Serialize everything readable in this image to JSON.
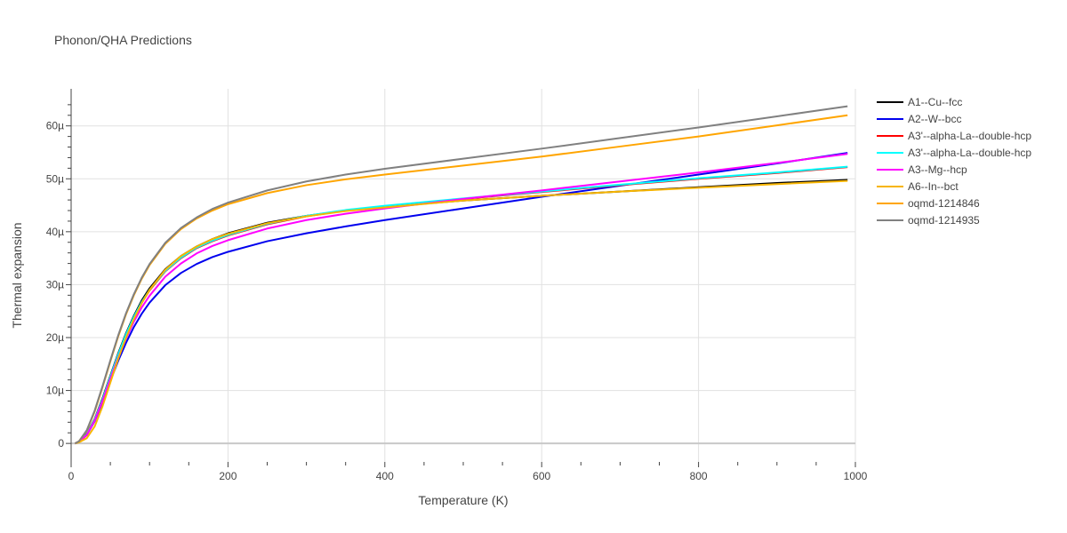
{
  "chart_data": {
    "type": "line",
    "title": "Phonon/QHA Predictions",
    "xlabel": "Temperature (K)",
    "ylabel": "Thermal expansion",
    "xlim": [
      0,
      1000
    ],
    "ylim": [
      -3.5e-06,
      6.7e-05
    ],
    "x_ticks": [
      0,
      200,
      400,
      600,
      800,
      1000
    ],
    "x_tick_labels": [
      "0",
      "200",
      "400",
      "600",
      "800",
      "1000"
    ],
    "y_ticks": [
      0,
      1e-05,
      2e-05,
      3e-05,
      4e-05,
      5e-05,
      6e-05
    ],
    "y_tick_labels": [
      "0",
      "10µ",
      "20µ",
      "30µ",
      "40µ",
      "50µ",
      "60µ"
    ],
    "grid": true,
    "legend_position": "right",
    "x": [
      5,
      10,
      20,
      30,
      40,
      50,
      60,
      70,
      80,
      90,
      100,
      120,
      140,
      160,
      180,
      200,
      250,
      300,
      350,
      400,
      500,
      600,
      700,
      800,
      900,
      990
    ],
    "series": [
      {
        "name": "A1--Cu--fcc",
        "color": "#000000",
        "values": [
          0,
          3e-07,
          1.8e-06,
          4.6e-06,
          8.5e-06,
          1.28e-05,
          1.7e-05,
          2.08e-05,
          2.41e-05,
          2.7e-05,
          2.93e-05,
          3.29e-05,
          3.54e-05,
          3.72e-05,
          3.86e-05,
          3.97e-05,
          4.17e-05,
          4.3e-05,
          4.4e-05,
          4.47e-05,
          4.59e-05,
          4.68e-05,
          4.76e-05,
          4.84e-05,
          4.92e-05,
          4.98e-05
        ]
      },
      {
        "name": "A2--W--bcc",
        "color": "#0000ee",
        "values": [
          0,
          3e-07,
          1.6e-06,
          4.2e-06,
          7.8e-06,
          1.18e-05,
          1.56e-05,
          1.9e-05,
          2.2e-05,
          2.45e-05,
          2.66e-05,
          2.99e-05,
          3.22e-05,
          3.39e-05,
          3.52e-05,
          3.62e-05,
          3.82e-05,
          3.97e-05,
          4.1e-05,
          4.22e-05,
          4.44e-05,
          4.66e-05,
          4.87e-05,
          5.08e-05,
          5.29e-05,
          5.49e-05
        ]
      },
      {
        "name": "A3'--alpha-La--double-hcp",
        "color": "#ff0000",
        "values": [
          0,
          3e-07,
          1.7e-06,
          4.5e-06,
          8.3e-06,
          1.26e-05,
          1.68e-05,
          2.05e-05,
          2.38e-05,
          2.66e-05,
          2.89e-05,
          3.25e-05,
          3.5e-05,
          3.69e-05,
          3.82e-05,
          3.93e-05,
          4.14e-05,
          4.29e-05,
          4.4e-05,
          4.48e-05,
          4.62e-05,
          4.75e-05,
          4.88e-05,
          5e-05,
          5.11e-05,
          5.22e-05
        ]
      },
      {
        "name": "A3'--alpha-La--double-hcp",
        "color": "#00ffff",
        "values": [
          0,
          3e-07,
          1.7e-06,
          4.5e-06,
          8.3e-06,
          1.26e-05,
          1.68e-05,
          2.06e-05,
          2.39e-05,
          2.67e-05,
          2.9e-05,
          3.26e-05,
          3.51e-05,
          3.7e-05,
          3.83e-05,
          3.94e-05,
          4.15e-05,
          4.3e-05,
          4.41e-05,
          4.49e-05,
          4.63e-05,
          4.76e-05,
          4.89e-05,
          5.01e-05,
          5.12e-05,
          5.23e-05
        ]
      },
      {
        "name": "A3--Mg--hcp",
        "color": "#ff00ff",
        "values": [
          0,
          3e-07,
          1.6e-06,
          4.3e-06,
          8e-06,
          1.22e-05,
          1.62e-05,
          1.98e-05,
          2.3e-05,
          2.57e-05,
          2.79e-05,
          3.15e-05,
          3.4e-05,
          3.59e-05,
          3.73e-05,
          3.84e-05,
          4.06e-05,
          4.22e-05,
          4.34e-05,
          4.44e-05,
          4.62e-05,
          4.78e-05,
          4.95e-05,
          5.12e-05,
          5.3e-05,
          5.47e-05
        ]
      },
      {
        "name": "A6--In--bct",
        "color": "#f7b500",
        "values": [
          0,
          2e-07,
          1e-06,
          3.2e-06,
          7e-06,
          1.15e-05,
          1.6e-05,
          2e-05,
          2.35e-05,
          2.65e-05,
          2.9e-05,
          3.28e-05,
          3.54e-05,
          3.72e-05,
          3.86e-05,
          3.96e-05,
          4.16e-05,
          4.29e-05,
          4.39e-05,
          4.46e-05,
          4.59e-05,
          4.68e-05,
          4.76e-05,
          4.83e-05,
          4.9e-05,
          4.96e-05
        ]
      },
      {
        "name": "oqmd-1214846",
        "color": "#ffa500",
        "values": [
          0,
          4e-07,
          2.4e-06,
          6e-06,
          1.06e-05,
          1.55e-05,
          2.02e-05,
          2.44e-05,
          2.8e-05,
          3.11e-05,
          3.37e-05,
          3.77e-05,
          4.05e-05,
          4.25e-05,
          4.4e-05,
          4.52e-05,
          4.73e-05,
          4.88e-05,
          4.99e-05,
          5.08e-05,
          5.25e-05,
          5.42e-05,
          5.61e-05,
          5.8e-05,
          6.01e-05,
          6.2e-05
        ]
      },
      {
        "name": "oqmd-1214935",
        "color": "#808080",
        "values": [
          0,
          4e-07,
          2.5e-06,
          6.2e-06,
          1.08e-05,
          1.57e-05,
          2.04e-05,
          2.46e-05,
          2.82e-05,
          3.13e-05,
          3.39e-05,
          3.79e-05,
          4.07e-05,
          4.27e-05,
          4.43e-05,
          4.55e-05,
          4.78e-05,
          4.95e-05,
          5.08e-05,
          5.19e-05,
          5.38e-05,
          5.57e-05,
          5.77e-05,
          5.97e-05,
          6.18e-05,
          6.37e-05
        ]
      }
    ]
  }
}
